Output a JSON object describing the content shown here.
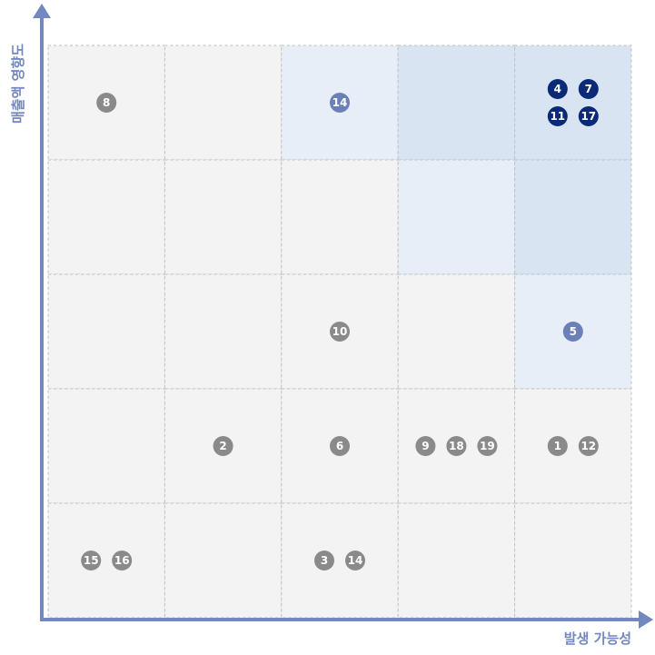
{
  "axes": {
    "x_label": "발생 가능성",
    "y_label": "매출액 영향도",
    "color": "#7388c0"
  },
  "grid": {
    "rows": [
      [
        {
          "fill": "#f3f3f3",
          "marker_color": "#8a8a8a",
          "markers": [
            "8"
          ]
        },
        {
          "fill": "#f3f3f3",
          "marker_color": "#8a8a8a",
          "markers": []
        },
        {
          "fill": "#e8eef7",
          "marker_color": "#6b80b8",
          "markers": [
            "14"
          ]
        },
        {
          "fill": "#d9e4f2",
          "marker_color": "#0a2a78",
          "markers": []
        },
        {
          "fill": "#d9e4f2",
          "marker_color": "#0a2a78",
          "markers": [
            "4",
            "7",
            "11",
            "17"
          ]
        }
      ],
      [
        {
          "fill": "#f3f3f3",
          "marker_color": "#8a8a8a",
          "markers": []
        },
        {
          "fill": "#f3f3f3",
          "marker_color": "#8a8a8a",
          "markers": []
        },
        {
          "fill": "#f3f3f3",
          "marker_color": "#8a8a8a",
          "markers": []
        },
        {
          "fill": "#e8eef7",
          "marker_color": "#6b80b8",
          "markers": []
        },
        {
          "fill": "#d9e4f2",
          "marker_color": "#0a2a78",
          "markers": []
        }
      ],
      [
        {
          "fill": "#f3f3f3",
          "marker_color": "#8a8a8a",
          "markers": []
        },
        {
          "fill": "#f3f3f3",
          "marker_color": "#8a8a8a",
          "markers": []
        },
        {
          "fill": "#f3f3f3",
          "marker_color": "#8a8a8a",
          "markers": [
            "10"
          ]
        },
        {
          "fill": "#f3f3f3",
          "marker_color": "#8a8a8a",
          "markers": []
        },
        {
          "fill": "#e8eef7",
          "marker_color": "#6b80b8",
          "markers": [
            "5"
          ]
        }
      ],
      [
        {
          "fill": "#f3f3f3",
          "marker_color": "#8a8a8a",
          "markers": []
        },
        {
          "fill": "#f3f3f3",
          "marker_color": "#8a8a8a",
          "markers": [
            "2"
          ]
        },
        {
          "fill": "#f3f3f3",
          "marker_color": "#8a8a8a",
          "markers": [
            "6"
          ]
        },
        {
          "fill": "#f3f3f3",
          "marker_color": "#8a8a8a",
          "markers": [
            "9",
            "18",
            "19"
          ]
        },
        {
          "fill": "#f3f3f3",
          "marker_color": "#8a8a8a",
          "markers": [
            "1",
            "12"
          ]
        }
      ],
      [
        {
          "fill": "#f3f3f3",
          "marker_color": "#8a8a8a",
          "markers": [
            "15",
            "16"
          ]
        },
        {
          "fill": "#f3f3f3",
          "marker_color": "#8a8a8a",
          "markers": []
        },
        {
          "fill": "#f3f3f3",
          "marker_color": "#8a8a8a",
          "markers": [
            "3",
            "14"
          ]
        },
        {
          "fill": "#f3f3f3",
          "marker_color": "#8a8a8a",
          "markers": []
        },
        {
          "fill": "#f3f3f3",
          "marker_color": "#8a8a8a",
          "markers": []
        }
      ]
    ]
  }
}
